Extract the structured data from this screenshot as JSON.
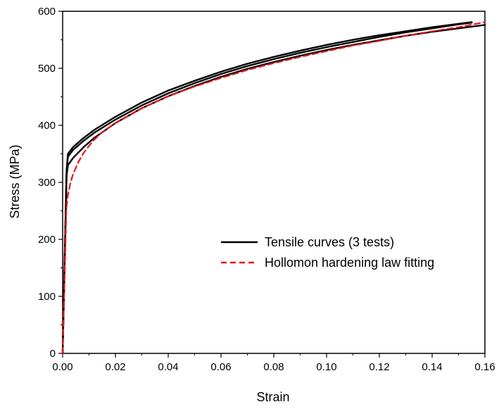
{
  "chart_data": {
    "type": "line",
    "title": "",
    "xlabel": "Strain",
    "ylabel": "Stress (MPa)",
    "xlim": [
      0.0,
      0.16
    ],
    "ylim": [
      0,
      600
    ],
    "x_ticks": [
      "0.00",
      "0.02",
      "0.04",
      "0.06",
      "0.08",
      "0.10",
      "0.12",
      "0.14",
      "0.16"
    ],
    "y_ticks": [
      "0",
      "100",
      "200",
      "300",
      "400",
      "500",
      "600"
    ],
    "grid": false,
    "legend_position": "center-right",
    "legend": [
      {
        "label": "Tensile curves (3 tests)",
        "color": "#000000",
        "style": "solid"
      },
      {
        "label": "Hollomon hardening law fitting",
        "color": "#e8141b",
        "style": "dashed"
      }
    ],
    "series": [
      {
        "legend_ref": 0,
        "color": "#000000",
        "style": "solid",
        "x": [
          0.0,
          0.0015,
          0.002,
          0.004,
          0.008,
          0.012,
          0.02,
          0.03,
          0.04,
          0.05,
          0.06,
          0.07,
          0.08,
          0.09,
          0.1,
          0.11,
          0.12,
          0.13,
          0.14,
          0.15,
          0.155
        ],
        "y": [
          0,
          320,
          350,
          362,
          378,
          392,
          415,
          440,
          461,
          478,
          494,
          508,
          520,
          531,
          541,
          550,
          558,
          565,
          572,
          578,
          581
        ]
      },
      {
        "legend_ref": 0,
        "color": "#000000",
        "style": "solid",
        "x": [
          0.0,
          0.0015,
          0.002,
          0.004,
          0.008,
          0.012,
          0.02,
          0.03,
          0.04,
          0.05,
          0.06,
          0.07,
          0.08,
          0.09,
          0.1,
          0.11,
          0.12,
          0.13,
          0.14,
          0.15,
          0.155
        ],
        "y": [
          0,
          318,
          345,
          357,
          373,
          387,
          410,
          435,
          456,
          474,
          490,
          504,
          516,
          527,
          537,
          546,
          555,
          563,
          570,
          577,
          580
        ]
      },
      {
        "legend_ref": 0,
        "color": "#000000",
        "style": "solid",
        "x": [
          0.0,
          0.0015,
          0.002,
          0.004,
          0.008,
          0.012,
          0.02,
          0.03,
          0.04,
          0.05,
          0.06,
          0.07,
          0.08,
          0.09,
          0.1,
          0.11,
          0.12,
          0.13,
          0.14,
          0.15,
          0.16
        ],
        "y": [
          0,
          312,
          330,
          343,
          362,
          378,
          404,
          430,
          451,
          469,
          485,
          499,
          511,
          522,
          532,
          541,
          549,
          557,
          564,
          570,
          576
        ]
      },
      {
        "legend_ref": 1,
        "color": "#e8141b",
        "style": "dashed",
        "x": [
          0.0,
          0.001,
          0.0014,
          0.002,
          0.003,
          0.004,
          0.006,
          0.008,
          0.01,
          0.012,
          0.015,
          0.02,
          0.03,
          0.04,
          0.05,
          0.06,
          0.07,
          0.08,
          0.09,
          0.1,
          0.11,
          0.12,
          0.13,
          0.14,
          0.15,
          0.16
        ],
        "y": [
          0,
          180,
          255,
          278,
          300,
          315,
          336,
          352,
          364,
          375,
          388,
          404,
          430,
          451,
          468,
          483,
          497,
          509,
          520,
          530,
          540,
          548,
          557,
          565,
          572,
          581
        ]
      }
    ]
  }
}
